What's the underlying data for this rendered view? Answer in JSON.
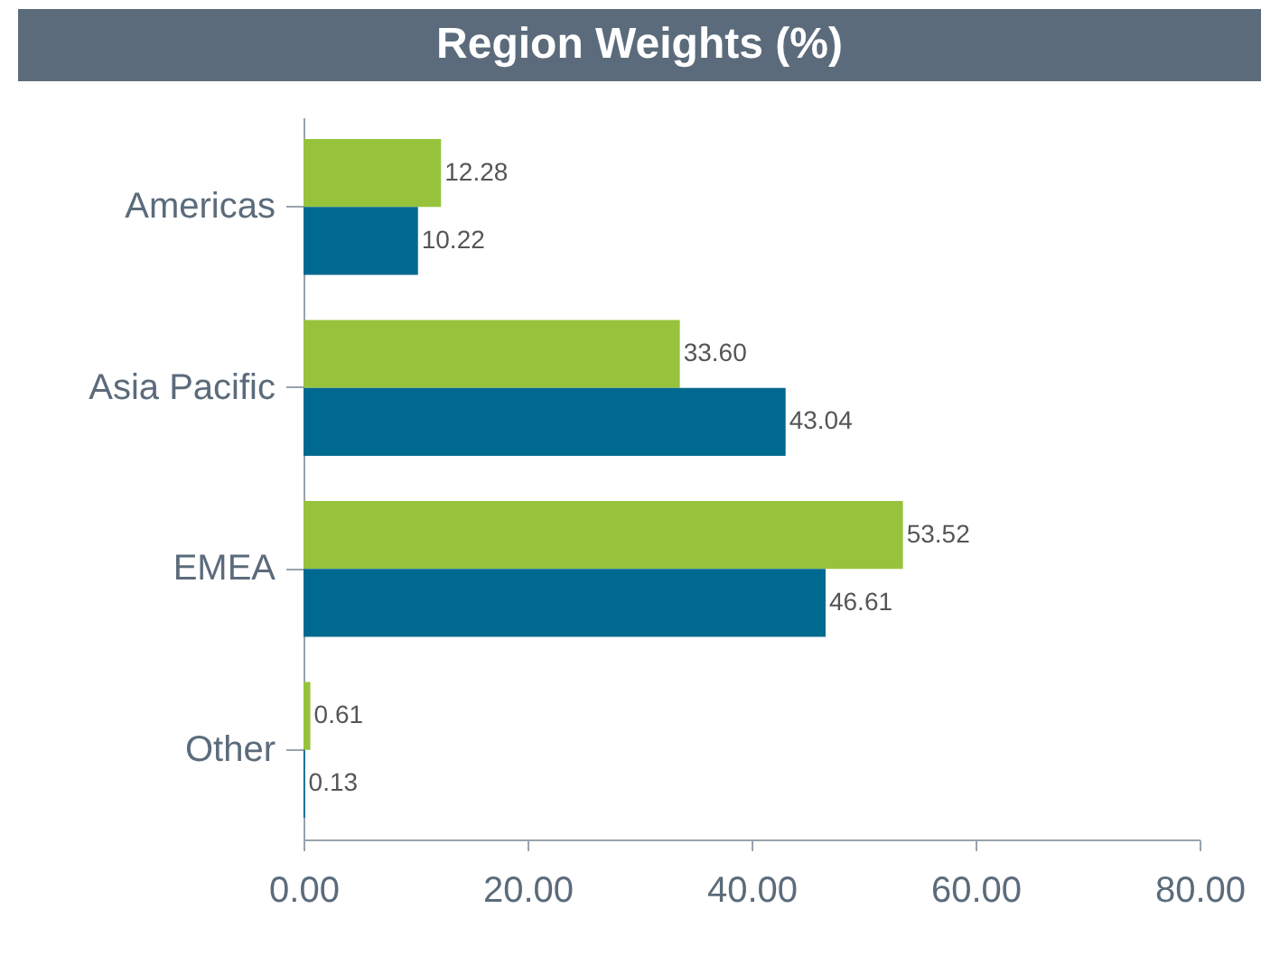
{
  "chart_data": {
    "type": "bar",
    "orientation": "horizontal",
    "title": "Region Weights (%)",
    "categories": [
      "Americas",
      "Asia Pacific",
      "EMEA",
      "Other"
    ],
    "series": [
      {
        "color": "#97c33c",
        "values": [
          12.28,
          33.6,
          53.52,
          0.61
        ],
        "value_labels": [
          "12.28",
          "33.60",
          "53.52",
          "0.61"
        ]
      },
      {
        "color": "#006990",
        "values": [
          10.22,
          43.04,
          46.61,
          0.13
        ],
        "value_labels": [
          "10.22",
          "43.04",
          "46.61",
          "0.13"
        ]
      }
    ],
    "xlim": [
      0,
      80
    ],
    "xticks": [
      {
        "value": 0,
        "label": "0.00"
      },
      {
        "value": 20,
        "label": "20.00"
      },
      {
        "value": 40,
        "label": "40.00"
      },
      {
        "value": 60,
        "label": "60.00"
      },
      {
        "value": 80,
        "label": "80.00"
      }
    ],
    "grid": false,
    "legend": false
  }
}
